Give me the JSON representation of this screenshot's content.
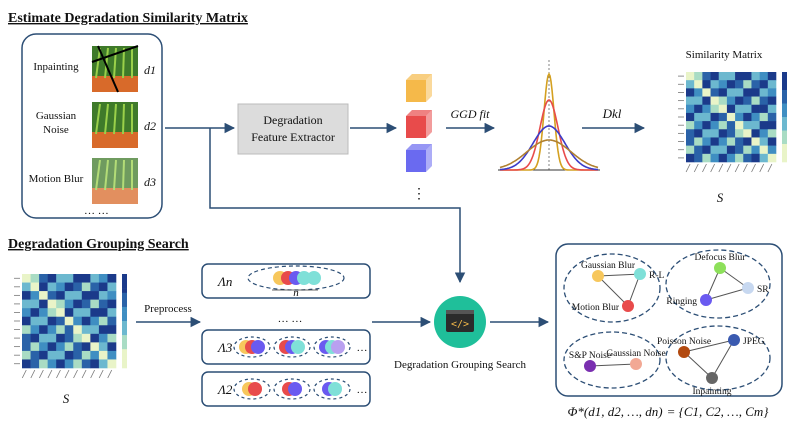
{
  "sections": {
    "top_title": "Estimate Degradation Similarity Matrix",
    "bottom_title": "Degradation Grouping Search"
  },
  "degradations": [
    {
      "label_lines": [
        "Inpainting"
      ],
      "symbol": "d1"
    },
    {
      "label_lines": [
        "Gaussian",
        "Noise"
      ],
      "symbol": "d2"
    },
    {
      "label_lines": [
        "Motion Blur"
      ],
      "symbol": "d3"
    }
  ],
  "list_more": "… …",
  "extractor": {
    "line1": "Degradation",
    "line2": "Feature Extractor"
  },
  "features_more": "⋮",
  "feature_colors": [
    "#f5b94a",
    "#e84b4b",
    "#6a6af0"
  ],
  "ggd_label": "GGD fit",
  "ggd_prefix": "GGD",
  "dkl_label": "Dkl",
  "similarity": {
    "title": "Similarity Matrix",
    "symbol": "S"
  },
  "bottom_matrix_symbol": "S",
  "preprocess_label": "Preprocess",
  "lambdas": [
    {
      "symbol": "Λn",
      "sub": "n",
      "sizes_label": "n"
    },
    {
      "symbol": "Λ3",
      "sub": "3"
    },
    {
      "symbol": "Λ2",
      "sub": "2"
    }
  ],
  "middle_ellipsis": "… …",
  "row_more": "…",
  "search_label": "Degradation Grouping Search",
  "groups": [
    {
      "nodes": [
        {
          "label": "Gaussian Blur",
          "color": "#f7c75c"
        },
        {
          "label": "R-L",
          "color": "#7fe0d8"
        },
        {
          "label": "Motion Blur",
          "color": "#e84b4b"
        }
      ]
    },
    {
      "nodes": [
        {
          "label": "Defocus Blur",
          "color": "#8de05a"
        },
        {
          "label": "SR",
          "color": "#c7d8f0"
        },
        {
          "label": "Ringing",
          "color": "#6a5af0"
        }
      ]
    },
    {
      "nodes": [
        {
          "label": "S&P Noise",
          "color": "#7a2fb0"
        },
        {
          "label": "Gaussian Noise",
          "color": "#f2a894"
        }
      ]
    },
    {
      "nodes": [
        {
          "label": "Poisson Noise",
          "color": "#b24a10"
        },
        {
          "label": "JPEG",
          "color": "#3a5ab0"
        },
        {
          "label": "Inpainting",
          "color": "#666666"
        }
      ]
    }
  ],
  "formula": {
    "phi": "Φ*",
    "args": "(d1, d2, …, dn)",
    "rhs": "= {C1, C2, …, Cm}"
  },
  "colors": {
    "arrow": "#2c4e75",
    "panel_border": "#2c4e75",
    "ellipse_border": "#2c4e75",
    "search_circle": "#1fbf9a",
    "extractor_fill": "#dcdcdc"
  }
}
